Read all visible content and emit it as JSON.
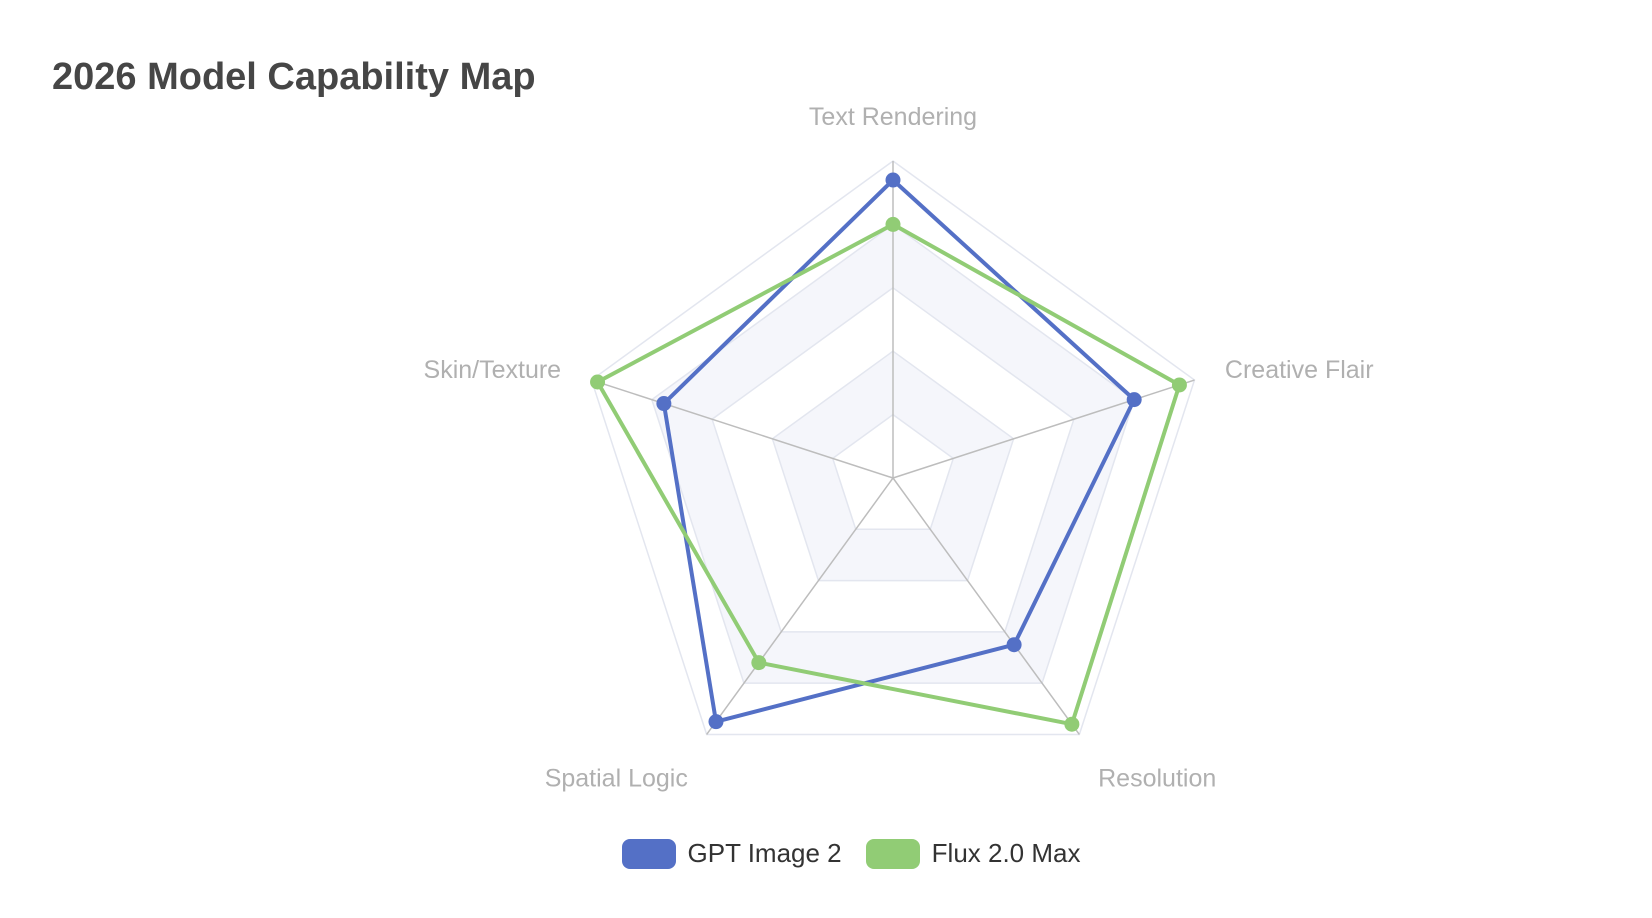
{
  "chart_data": {
    "type": "radar",
    "title": "2026 Model Capability Map",
    "indicators": [
      "Text Rendering",
      "Creative Flair",
      "Resolution",
      "Spatial Logic",
      "Skin/Texture"
    ],
    "max": 100,
    "split_number": 5,
    "series": [
      {
        "name": "GPT Image 2",
        "color": "#5470c6",
        "values": [
          94,
          80,
          65,
          95,
          76
        ]
      },
      {
        "name": "Flux 2.0 Max",
        "color": "#91cc75",
        "values": [
          80,
          95,
          96,
          72,
          98
        ]
      }
    ],
    "legend_position": "bottom-center",
    "split_area_colors": [
      "#ffffff",
      "#f5f6fb"
    ],
    "split_line_color": "#e3e6ef",
    "axis_line_color": "#bdbdbd"
  }
}
